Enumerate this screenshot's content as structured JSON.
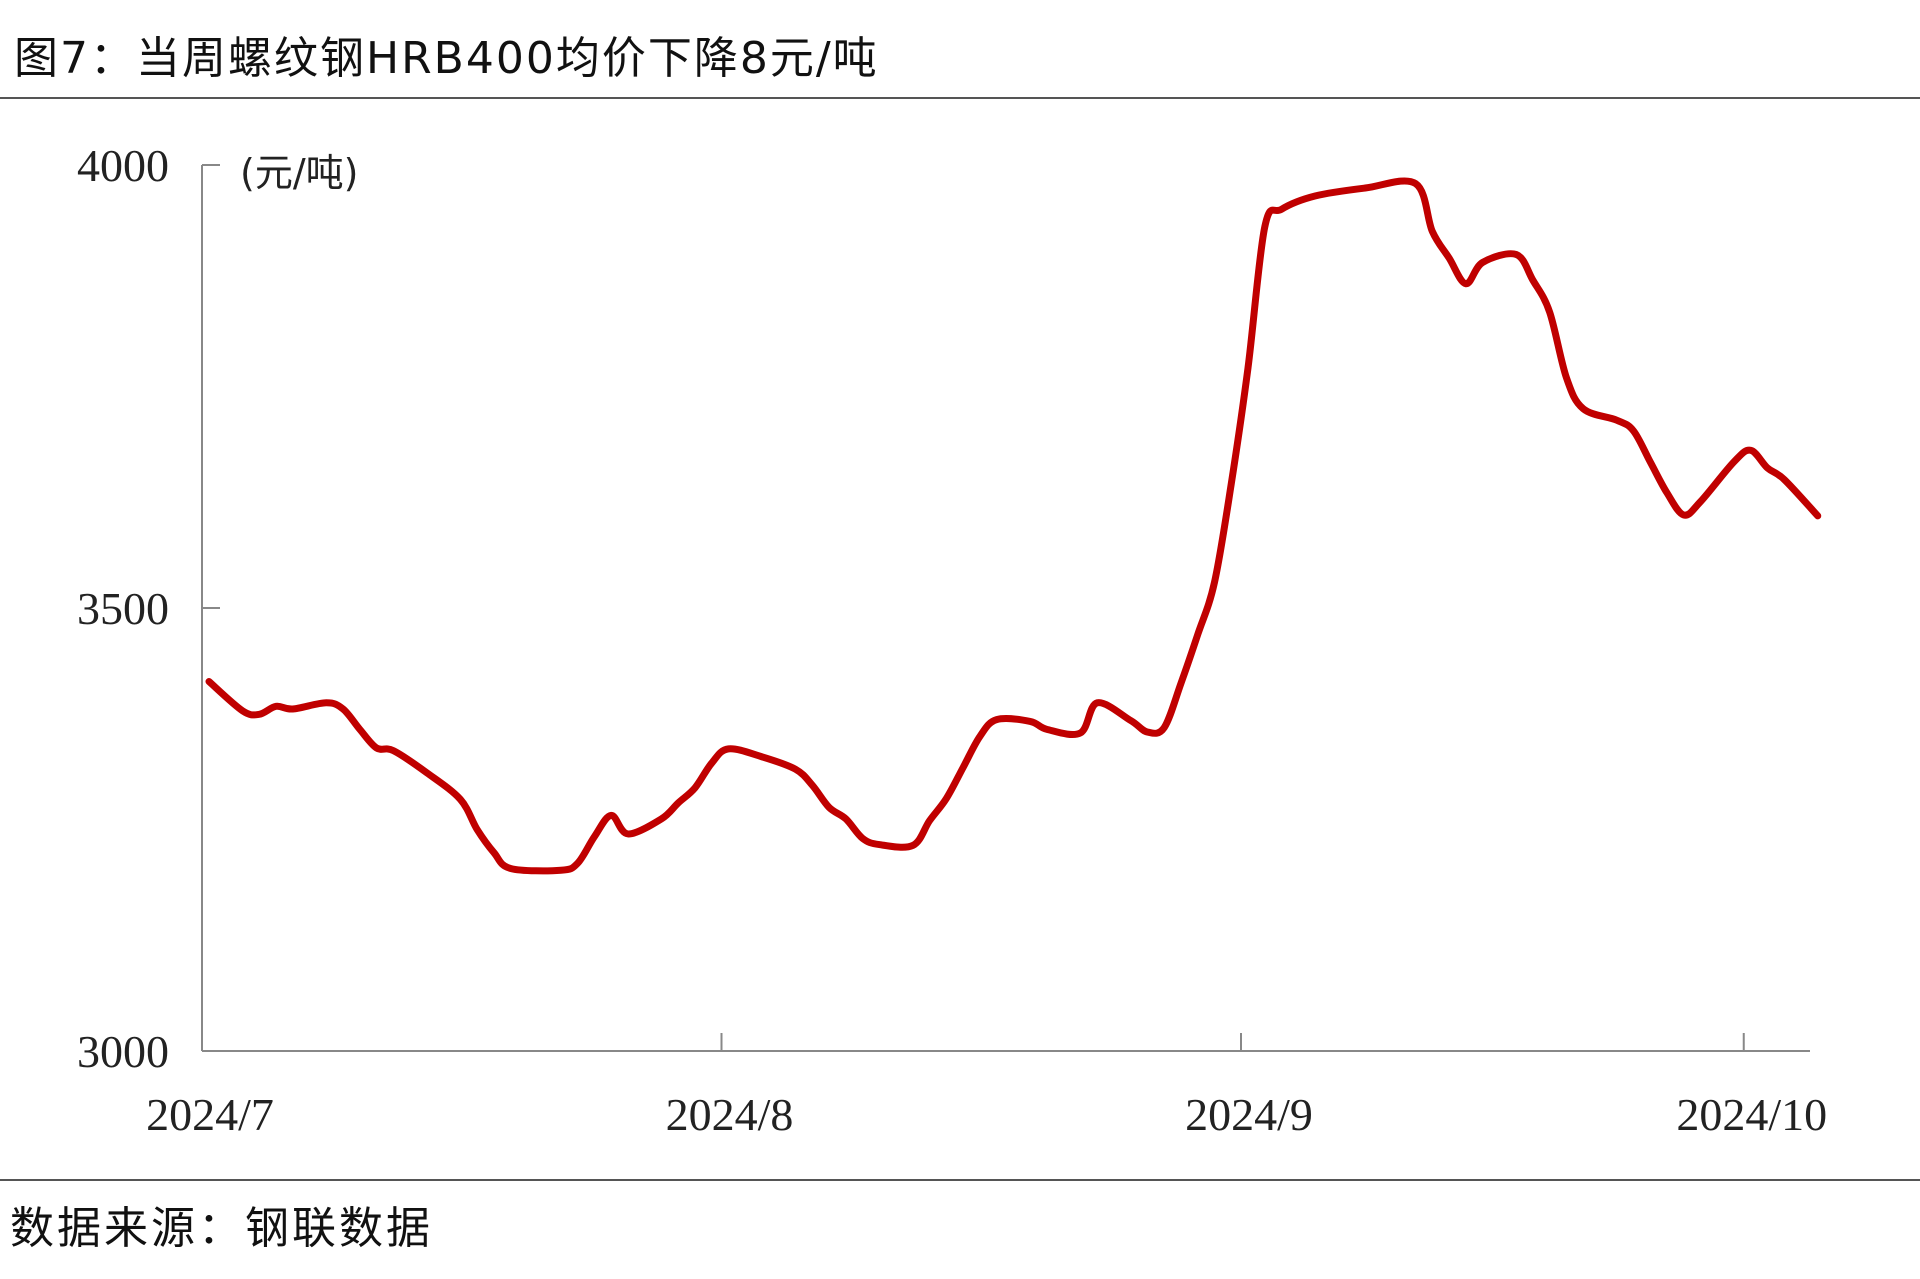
{
  "title": "图7：当周螺纹钢HRB400均价下降8元/吨",
  "source": "数据来源：钢联数据",
  "colors": {
    "line": "#C00000",
    "axis": "#888888"
  },
  "chart_data": {
    "type": "line",
    "title": "图7：当周螺纹钢HRB400均价下降8元/吨",
    "ylabel": "(元/吨)",
    "xlabel": "",
    "ylim": [
      3000,
      4000
    ],
    "yticks": [
      "3000",
      "3500",
      "4000"
    ],
    "xticks": [
      "2024/7",
      "2024/8",
      "2024/9",
      "2024/10"
    ],
    "xlim": [
      "2024-07-01",
      "2024-10-08"
    ],
    "grid": false,
    "series": [
      {
        "color": "#C00000",
        "points": [
          [
            "2024-07-01",
            3417
          ],
          [
            "2024-07-03",
            3384
          ],
          [
            "2024-07-04",
            3380
          ],
          [
            "2024-07-05",
            3389
          ],
          [
            "2024-07-06",
            3386
          ],
          [
            "2024-07-08",
            3393
          ],
          [
            "2024-07-09",
            3386
          ],
          [
            "2024-07-10",
            3363
          ],
          [
            "2024-07-11",
            3342
          ],
          [
            "2024-07-12",
            3339
          ],
          [
            "2024-07-14",
            3314
          ],
          [
            "2024-07-16",
            3284
          ],
          [
            "2024-07-17",
            3250
          ],
          [
            "2024-07-18",
            3224
          ],
          [
            "2024-07-19",
            3206
          ],
          [
            "2024-07-22",
            3204
          ],
          [
            "2024-07-23",
            3212
          ],
          [
            "2024-07-24",
            3242
          ],
          [
            "2024-07-25",
            3266
          ],
          [
            "2024-07-26",
            3245
          ],
          [
            "2024-07-28",
            3262
          ],
          [
            "2024-07-29",
            3280
          ],
          [
            "2024-07-30",
            3297
          ],
          [
            "2024-07-31",
            3325
          ],
          [
            "2024-08-01",
            3341
          ],
          [
            "2024-08-03",
            3332
          ],
          [
            "2024-08-05",
            3318
          ],
          [
            "2024-08-06",
            3300
          ],
          [
            "2024-08-07",
            3275
          ],
          [
            "2024-08-08",
            3262
          ],
          [
            "2024-08-09",
            3240
          ],
          [
            "2024-08-10",
            3233
          ],
          [
            "2024-08-12",
            3232
          ],
          [
            "2024-08-13",
            3260
          ],
          [
            "2024-08-14",
            3285
          ],
          [
            "2024-08-15",
            3320
          ],
          [
            "2024-08-16",
            3355
          ],
          [
            "2024-08-17",
            3374
          ],
          [
            "2024-08-19",
            3372
          ],
          [
            "2024-08-20",
            3363
          ],
          [
            "2024-08-22",
            3359
          ],
          [
            "2024-08-23",
            3393
          ],
          [
            "2024-08-25",
            3373
          ],
          [
            "2024-08-26",
            3360
          ],
          [
            "2024-08-27",
            3365
          ],
          [
            "2024-08-28",
            3415
          ],
          [
            "2024-08-29",
            3470
          ],
          [
            "2024-08-30",
            3529
          ],
          [
            "2024-08-31",
            3640
          ],
          [
            "2024-09-01",
            3771
          ],
          [
            "2024-09-02",
            3930
          ],
          [
            "2024-09-03",
            3950
          ],
          [
            "2024-09-05",
            3965
          ],
          [
            "2024-09-08",
            3974
          ],
          [
            "2024-09-11",
            3979
          ],
          [
            "2024-09-12",
            3925
          ],
          [
            "2024-09-13",
            3895
          ],
          [
            "2024-09-14",
            3866
          ],
          [
            "2024-09-15",
            3890
          ],
          [
            "2024-09-17",
            3899
          ],
          [
            "2024-09-18",
            3870
          ],
          [
            "2024-09-19",
            3834
          ],
          [
            "2024-09-20",
            3760
          ],
          [
            "2024-09-21",
            3725
          ],
          [
            "2024-09-23",
            3712
          ],
          [
            "2024-09-24",
            3700
          ],
          [
            "2024-09-25",
            3665
          ],
          [
            "2024-09-26",
            3630
          ],
          [
            "2024-09-27",
            3605
          ],
          [
            "2024-09-28",
            3620
          ],
          [
            "2024-09-30",
            3665
          ],
          [
            "2024-10-01",
            3678
          ],
          [
            "2024-10-02",
            3658
          ],
          [
            "2024-10-03",
            3645
          ],
          [
            "2024-10-05",
            3604
          ]
        ]
      }
    ]
  }
}
